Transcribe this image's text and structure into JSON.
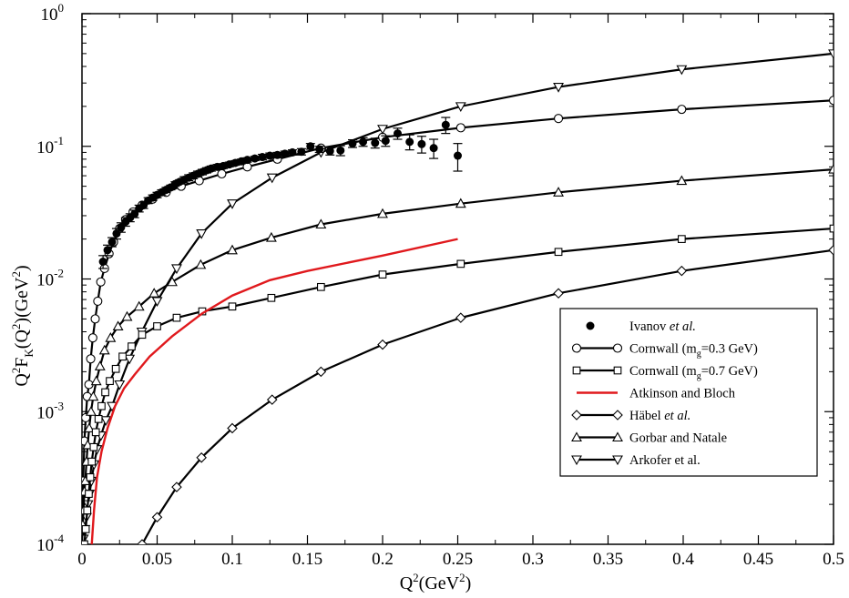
{
  "chart_data": {
    "type": "line",
    "x_label": {
      "main": "Q",
      "sup": "2",
      "rest": "(GeV",
      "sup2": "2",
      "close": ")"
    },
    "y_label": {
      "p1": "Q",
      "s1": "2",
      "p2": "F",
      "sub": "K",
      "p3": "(Q",
      "s2": "2",
      "p4": ")(GeV",
      "s3": "2",
      "p5": ")"
    },
    "xlim": [
      0,
      0.5
    ],
    "ylim": [
      0.0001,
      1
    ],
    "y_scale": "log",
    "x_ticks": [
      "0",
      "0.05",
      "0.1",
      "0.15",
      "0.2",
      "0.25",
      "0.3",
      "0.35",
      "0.4",
      "0.45",
      "0.5"
    ],
    "x_tick_values": [
      0,
      0.05,
      0.1,
      0.15,
      0.2,
      0.25,
      0.3,
      0.35,
      0.4,
      0.45,
      0.5
    ],
    "y_ticks": [
      {
        "value": 1,
        "base": "10",
        "exp": "0"
      },
      {
        "value": 0.1,
        "base": "10",
        "exp": "-1"
      },
      {
        "value": 0.01,
        "base": "10",
        "exp": "-2"
      },
      {
        "value": 0.001,
        "base": "10",
        "exp": "-3"
      },
      {
        "value": 0.0001,
        "base": "10",
        "exp": "-4"
      }
    ],
    "legend_position": "right-middle",
    "legend": [
      {
        "key": "ivanov",
        "text": "Ivanov ",
        "italic": "et al.",
        "sub": "",
        "suffix": ""
      },
      {
        "key": "cornwall03",
        "text": "Cornwall (m",
        "italic": "",
        "sub": "g",
        "suffix": "=0.3 GeV)"
      },
      {
        "key": "cornwall07",
        "text": "Cornwall (m",
        "italic": "",
        "sub": "g",
        "suffix": "=0.7 GeV)"
      },
      {
        "key": "atkinson",
        "text": "Atkinson and Bloch",
        "italic": "",
        "sub": "",
        "suffix": ""
      },
      {
        "key": "habel",
        "text": "Häbel ",
        "italic": "et al.",
        "sub": "",
        "suffix": ""
      },
      {
        "key": "gorbar",
        "text": "Gorbar and Natale",
        "italic": "",
        "sub": "",
        "suffix": ""
      },
      {
        "key": "arkofer",
        "text": "Arkofer et al.",
        "italic": "",
        "sub": "",
        "suffix": ""
      }
    ],
    "series": [
      {
        "name": "Cornwall (mg=0.3 GeV)",
        "key": "cornwall03",
        "marker": "circle",
        "color": "#000000",
        "x": [
          0,
          0.0008,
          0.0016,
          0.0025,
          0.0035,
          0.0046,
          0.0058,
          0.0072,
          0.0088,
          0.0105,
          0.0125,
          0.015,
          0.018,
          0.021,
          0.025,
          0.029,
          0.034,
          0.04,
          0.047,
          0.056,
          0.066,
          0.078,
          0.093,
          0.11,
          0.13,
          0.159,
          0.2,
          0.252,
          0.317,
          0.399,
          0.5
        ],
        "y": [
          0.0001,
          0.0003,
          0.0006,
          0.0009,
          0.0013,
          0.0016,
          0.0025,
          0.0036,
          0.005,
          0.0068,
          0.0095,
          0.012,
          0.0155,
          0.019,
          0.024,
          0.028,
          0.032,
          0.036,
          0.04,
          0.045,
          0.05,
          0.055,
          0.062,
          0.07,
          0.08,
          0.097,
          0.117,
          0.138,
          0.162,
          0.19,
          0.222
        ]
      },
      {
        "name": "Arkofer et al.",
        "key": "arkofer",
        "marker": "triangle-down",
        "color": "#000000",
        "x": [
          0.0002,
          0.001,
          0.002,
          0.003,
          0.004,
          0.005,
          0.0063,
          0.008,
          0.01,
          0.0126,
          0.0159,
          0.02,
          0.025,
          0.0316,
          0.0398,
          0.05,
          0.063,
          0.0795,
          0.1,
          0.1265,
          0.159,
          0.2,
          0.252,
          0.317,
          0.399,
          0.5
        ],
        "y": [
          0.0001,
          0.00011,
          0.00013,
          0.00016,
          0.0002,
          0.00024,
          0.0003,
          0.0004,
          0.00052,
          0.00066,
          0.00086,
          0.0011,
          0.0016,
          0.0025,
          0.004,
          0.0068,
          0.012,
          0.022,
          0.037,
          0.058,
          0.09,
          0.135,
          0.2,
          0.28,
          0.38,
          0.5
        ]
      },
      {
        "name": "Gorbar and Natale",
        "key": "gorbar",
        "marker": "triangle-up",
        "color": "#000000",
        "x": [
          0,
          0.0005,
          0.001,
          0.0016,
          0.0022,
          0.003,
          0.0038,
          0.0048,
          0.006,
          0.0075,
          0.0095,
          0.012,
          0.015,
          0.019,
          0.024,
          0.03,
          0.038,
          0.048,
          0.06,
          0.079,
          0.1,
          0.126,
          0.159,
          0.2,
          0.252,
          0.317,
          0.399,
          0.5
        ],
        "y": [
          0.0001,
          0.00014,
          0.00018,
          0.00025,
          0.0003,
          0.00042,
          0.00056,
          0.00075,
          0.001,
          0.0013,
          0.0017,
          0.0022,
          0.0029,
          0.0036,
          0.0044,
          0.0052,
          0.0062,
          0.0078,
          0.0095,
          0.0128,
          0.0165,
          0.0205,
          0.0258,
          0.031,
          0.037,
          0.045,
          0.055,
          0.067
        ]
      },
      {
        "name": "Cornwall (mg=0.7 GeV)",
        "key": "cornwall07",
        "marker": "square",
        "color": "#000000",
        "x": [
          0.0015,
          0.0025,
          0.0035,
          0.0045,
          0.0055,
          0.0065,
          0.0078,
          0.0092,
          0.011,
          0.013,
          0.0155,
          0.0185,
          0.0225,
          0.027,
          0.033,
          0.04,
          0.05,
          0.063,
          0.08,
          0.1,
          0.126,
          0.159,
          0.2,
          0.252,
          0.317,
          0.399,
          0.5
        ],
        "y": [
          0.0001,
          0.00013,
          0.00018,
          0.00024,
          0.00032,
          0.00042,
          0.00054,
          0.0007,
          0.00088,
          0.0011,
          0.0014,
          0.0017,
          0.0021,
          0.0026,
          0.0031,
          0.0038,
          0.0044,
          0.0051,
          0.0057,
          0.0062,
          0.0072,
          0.0087,
          0.0108,
          0.013,
          0.016,
          0.02,
          0.024
        ]
      },
      {
        "name": "Häbel et al.",
        "key": "habel",
        "marker": "diamond",
        "color": "#000000",
        "x": [
          0.04,
          0.05,
          0.063,
          0.0795,
          0.1,
          0.1265,
          0.159,
          0.2,
          0.252,
          0.317,
          0.399,
          0.5
        ],
        "y": [
          0.0001,
          0.00016,
          0.00027,
          0.00045,
          0.00075,
          0.00123,
          0.002,
          0.0032,
          0.0051,
          0.0078,
          0.0115,
          0.0165
        ]
      },
      {
        "name": "Atkinson and Bloch",
        "key": "atkinson",
        "marker": "none",
        "color": "#e0191d",
        "x": [
          0.0065,
          0.008,
          0.01,
          0.013,
          0.017,
          0.022,
          0.028,
          0.035,
          0.045,
          0.06,
          0.08,
          0.1,
          0.125,
          0.15,
          0.2,
          0.25
        ],
        "y": [
          0.0001,
          0.00018,
          0.00032,
          0.0005,
          0.00075,
          0.0011,
          0.0015,
          0.0019,
          0.0026,
          0.0037,
          0.0055,
          0.0075,
          0.0098,
          0.0115,
          0.015,
          0.02
        ]
      },
      {
        "name": "Ivanov et al.",
        "key": "ivanov",
        "marker": "filled-circle",
        "color": "#000000",
        "x": [
          0.014,
          0.017,
          0.02,
          0.023,
          0.026,
          0.029,
          0.032,
          0.035,
          0.038,
          0.041,
          0.044,
          0.047,
          0.05,
          0.053,
          0.056,
          0.059,
          0.062,
          0.065,
          0.068,
          0.071,
          0.074,
          0.077,
          0.08,
          0.083,
          0.086,
          0.09,
          0.094,
          0.098,
          0.102,
          0.106,
          0.11,
          0.115,
          0.12,
          0.125,
          0.13,
          0.135,
          0.14,
          0.146,
          0.152,
          0.158,
          0.165,
          0.172,
          0.18,
          0.187,
          0.195,
          0.202,
          0.21,
          0.218,
          0.226,
          0.234,
          0.242,
          0.25
        ],
        "y": [
          0.0135,
          0.0165,
          0.019,
          0.022,
          0.0245,
          0.027,
          0.029,
          0.031,
          0.034,
          0.036,
          0.039,
          0.041,
          0.043,
          0.045,
          0.047,
          0.049,
          0.052,
          0.054,
          0.056,
          0.058,
          0.06,
          0.062,
          0.064,
          0.066,
          0.068,
          0.07,
          0.071,
          0.073,
          0.075,
          0.077,
          0.079,
          0.081,
          0.083,
          0.085,
          0.086,
          0.088,
          0.09,
          0.091,
          0.1,
          0.095,
          0.092,
          0.093,
          0.105,
          0.108,
          0.106,
          0.11,
          0.125,
          0.108,
          0.104,
          0.097,
          0.145,
          0.085
        ],
        "err": [
          0.0015,
          0.0015,
          0.0015,
          0.002,
          0.002,
          0.002,
          0.002,
          0.002,
          0.002,
          0.002,
          0.002,
          0.002,
          0.002,
          0.002,
          0.002,
          0.002,
          0.002,
          0.002,
          0.003,
          0.003,
          0.003,
          0.003,
          0.003,
          0.003,
          0.003,
          0.003,
          0.003,
          0.003,
          0.003,
          0.003,
          0.003,
          0.003,
          0.004,
          0.004,
          0.004,
          0.004,
          0.004,
          0.005,
          0.005,
          0.005,
          0.006,
          0.008,
          0.007,
          0.008,
          0.009,
          0.01,
          0.012,
          0.014,
          0.015,
          0.016,
          0.02,
          0.02
        ]
      }
    ]
  }
}
